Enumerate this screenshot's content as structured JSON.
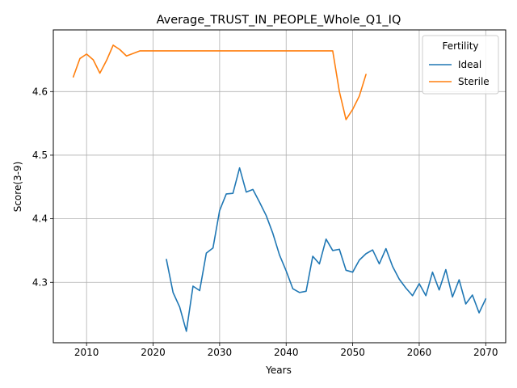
{
  "chart_data": {
    "type": "line",
    "title": "Average_TRUST_IN_PEOPLE_Whole_Q1_IQ",
    "xlabel": "Years",
    "ylabel": "Score(3-9)",
    "xlim": [
      2005,
      2073
    ],
    "ylim": [
      4.205,
      4.697
    ],
    "xticks": [
      2010,
      2020,
      2030,
      2040,
      2050,
      2060,
      2070
    ],
    "yticks": [
      4.3,
      4.4,
      4.5,
      4.6
    ],
    "ytick_labels": [
      "4.3",
      "4.4",
      "4.5",
      "4.6"
    ],
    "grid": true,
    "legend": {
      "title": "Fertility",
      "position": "top-right"
    },
    "series": [
      {
        "name": "Ideal",
        "color": "#1f77b4",
        "x": [
          2022,
          2023,
          2024,
          2025,
          2026,
          2027,
          2028,
          2029,
          2030,
          2031,
          2032,
          2033,
          2034,
          2035,
          2036,
          2037,
          2038,
          2039,
          2040,
          2041,
          2042,
          2043,
          2044,
          2045,
          2046,
          2047,
          2048,
          2049,
          2050,
          2051,
          2052,
          2053,
          2054,
          2055,
          2056,
          2057,
          2058,
          2059,
          2060,
          2061,
          2062,
          2063,
          2064,
          2065,
          2066,
          2067,
          2068,
          2069,
          2070
        ],
        "y": [
          4.336,
          4.284,
          4.261,
          4.223,
          4.294,
          4.287,
          4.346,
          4.354,
          4.413,
          4.439,
          4.44,
          4.48,
          4.442,
          4.446,
          4.426,
          4.405,
          4.377,
          4.343,
          4.318,
          4.29,
          4.284,
          4.286,
          4.341,
          4.329,
          4.368,
          4.35,
          4.352,
          4.319,
          4.316,
          4.335,
          4.345,
          4.351,
          4.329,
          4.353,
          4.325,
          4.305,
          4.291,
          4.279,
          4.298,
          4.279,
          4.316,
          4.288,
          4.32,
          4.277,
          4.304,
          4.266,
          4.28,
          4.252,
          4.274
        ]
      },
      {
        "name": "Sterile",
        "color": "#ff7f0e",
        "x": [
          2008,
          2009,
          2010,
          2011,
          2012,
          2013,
          2014,
          2015,
          2016,
          2017,
          2018,
          2019,
          2020,
          2021,
          2022,
          2023,
          2024,
          2025,
          2026,
          2027,
          2028,
          2029,
          2030,
          2031,
          2032,
          2033,
          2034,
          2035,
          2036,
          2037,
          2038,
          2039,
          2040,
          2041,
          2042,
          2043,
          2044,
          2045,
          2046,
          2047,
          2048,
          2049,
          2050,
          2051,
          2052
        ],
        "y": [
          4.623,
          4.652,
          4.659,
          4.65,
          4.629,
          4.649,
          4.673,
          4.666,
          4.656,
          4.66,
          4.664,
          4.664,
          4.664,
          4.664,
          4.664,
          4.664,
          4.664,
          4.664,
          4.664,
          4.664,
          4.664,
          4.664,
          4.664,
          4.664,
          4.664,
          4.664,
          4.664,
          4.664,
          4.664,
          4.664,
          4.664,
          4.664,
          4.664,
          4.664,
          4.664,
          4.664,
          4.664,
          4.664,
          4.664,
          4.664,
          4.6,
          4.556,
          4.572,
          4.593,
          4.627
        ]
      }
    ]
  }
}
